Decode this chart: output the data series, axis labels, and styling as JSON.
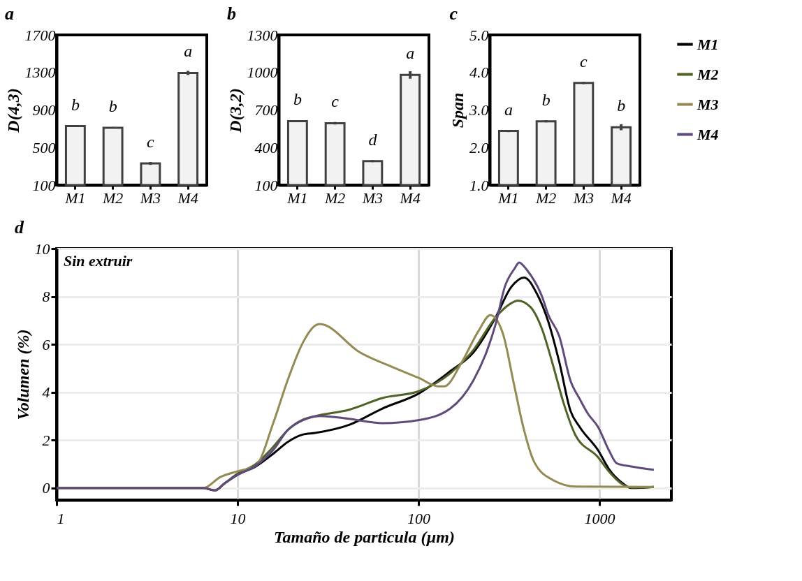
{
  "chart_data": [
    {
      "type": "bar",
      "title": "a",
      "ylabel": "D(4,3)",
      "categories": [
        "M1",
        "M2",
        "M3",
        "M4"
      ],
      "values": [
        728,
        711,
        330,
        1295
      ],
      "errors": [
        8,
        8,
        15,
        22
      ],
      "color": "#f2f2f2",
      "ylim": [
        100,
        1700
      ],
      "yticks": [
        100,
        500,
        900,
        1300,
        1700
      ],
      "grid": false,
      "annotations": [
        {
          "text": "b",
          "x": "M1",
          "y": 728
        },
        {
          "text": "b",
          "x": "M2",
          "y": 711
        },
        {
          "text": "c",
          "x": "M3",
          "y": 330
        },
        {
          "text": "a",
          "x": "M4",
          "y": 1295
        }
      ]
    },
    {
      "type": "bar",
      "title": "b",
      "ylabel": "D(3,2)",
      "categories": [
        "M1",
        "M2",
        "M3",
        "M4"
      ],
      "values": [
        611,
        594,
        291,
        980
      ],
      "errors": [
        8,
        10,
        8,
        30
      ],
      "color": "#f2f2f2",
      "ylim": [
        100,
        1300
      ],
      "yticks": [
        100,
        400,
        700,
        1000,
        1300
      ],
      "grid": false,
      "annotations": [
        {
          "text": "b",
          "x": "M1",
          "y": 611
        },
        {
          "text": "c",
          "x": "M2",
          "y": 594
        },
        {
          "text": "d",
          "x": "M3",
          "y": 291
        },
        {
          "text": "a",
          "x": "M4",
          "y": 980
        }
      ]
    },
    {
      "type": "bar",
      "title": "c",
      "ylabel": "Span",
      "categories": [
        "M1",
        "M2",
        "M3",
        "M4"
      ],
      "values": [
        2.44,
        2.7,
        3.72,
        2.54
      ],
      "errors": [
        0.03,
        0.03,
        0.03,
        0.08
      ],
      "color": "#f2f2f2",
      "ylim": [
        1.0,
        5.0
      ],
      "yticks": [
        {
          "value": 1,
          "label": "1.0"
        },
        {
          "value": 2,
          "label": "2.0"
        },
        {
          "value": 3,
          "label": "3.0"
        },
        {
          "value": 4,
          "label": "4.0"
        },
        {
          "value": 5,
          "label": "5.0"
        }
      ],
      "grid": false,
      "annotations": [
        {
          "text": "a",
          "x": "M1",
          "y": 2.44
        },
        {
          "text": "b",
          "x": "M2",
          "y": 2.7
        },
        {
          "text": "c",
          "x": "M3",
          "y": 3.72
        },
        {
          "text": "b",
          "x": "M4",
          "y": 2.54
        }
      ]
    },
    {
      "type": "line",
      "title": "d",
      "xlabel": "Tamaño de particula (µm)",
      "ylabel": "Volumen (%)",
      "log": "x",
      "xlim": [
        1,
        2500
      ],
      "xticks": [
        1,
        10,
        100,
        1000
      ],
      "ylim": [
        -0.5,
        10
      ],
      "yticks": [
        0,
        2,
        4,
        6,
        8,
        10
      ],
      "grid": true,
      "legend": "right",
      "marker": "none",
      "line_style": "solid",
      "annotations": [
        "Sin extruir"
      ],
      "series": [
        {
          "name": "M1",
          "color": "#000000",
          "x": [
            1,
            6.5,
            7.5,
            8.5,
            10,
            12.6,
            15.8,
            19,
            22.9,
            26.8,
            41.4,
            63.2,
            101,
            150,
            201,
            267,
            326,
            384,
            452,
            523,
            600,
            692,
            780,
            985,
            1130,
            1345,
            1500,
            2000
          ],
          "values": [
            0,
            0,
            -0.1,
            0.2,
            0.55,
            0.9,
            1.44,
            1.93,
            2.23,
            2.3,
            2.64,
            3.32,
            3.96,
            4.88,
            5.66,
            7.13,
            8.4,
            8.79,
            8.11,
            6.93,
            5.27,
            3.23,
            2.54,
            1.57,
            0.79,
            0.2,
            0.0,
            0.05
          ]
        },
        {
          "name": "M2",
          "color": "#4f6228",
          "x": [
            1,
            6.5,
            7.5,
            8.5,
            10,
            12.6,
            15.8,
            19,
            22.9,
            26.8,
            41.4,
            63.2,
            101,
            150,
            201,
            267,
            326,
            353,
            415,
            482,
            552,
            636,
            733,
            985,
            1130,
            1345,
            1500,
            2000
          ],
          "values": [
            0,
            0,
            -0.1,
            0.2,
            0.6,
            1.0,
            1.73,
            2.43,
            2.85,
            3.0,
            3.27,
            3.76,
            4.05,
            4.79,
            5.76,
            7.13,
            7.72,
            7.83,
            7.57,
            6.64,
            5.18,
            3.52,
            2.25,
            1.28,
            0.69,
            0.15,
            0.02,
            0.05
          ]
        },
        {
          "name": "M3",
          "color": "#948a54",
          "x": [
            1,
            6.5,
            8,
            10,
            12.6,
            15.8,
            19,
            22.9,
            26.3,
            28.5,
            47.6,
            73,
            101,
            128,
            139,
            174,
            214,
            250,
            293,
            338,
            380,
            437,
            552,
            745,
            2000
          ],
          "values": [
            0,
            0,
            0.45,
            0.7,
            0.93,
            2.74,
            4.54,
            6.05,
            6.73,
            6.85,
            5.66,
            5.03,
            4.59,
            4.25,
            4.25,
            5.27,
            6.54,
            7.22,
            6.45,
            4.3,
            2.54,
            1.08,
            0.34,
            0.06,
            0.05
          ]
        },
        {
          "name": "M4",
          "color": "#604a7b",
          "x": [
            1,
            6.5,
            7.5,
            8.5,
            10,
            12.6,
            15.8,
            19,
            22.9,
            28.6,
            41.4,
            63.2,
            101,
            150,
            201,
            240,
            267,
            300,
            340,
            360,
            400,
            482,
            523,
            600,
            692,
            780,
            860,
            985,
            1130,
            1250,
            1500,
            2000
          ],
          "values": [
            0,
            0,
            -0.1,
            0.2,
            0.55,
            0.93,
            1.6,
            2.43,
            2.83,
            3.01,
            2.89,
            2.71,
            2.84,
            3.32,
            4.49,
            5.76,
            6.84,
            8.4,
            9.17,
            9.42,
            9.08,
            8.0,
            7.22,
            6.35,
            4.49,
            3.71,
            3.13,
            2.54,
            1.57,
            1.03,
            0.9,
            0.76
          ]
        }
      ]
    }
  ]
}
